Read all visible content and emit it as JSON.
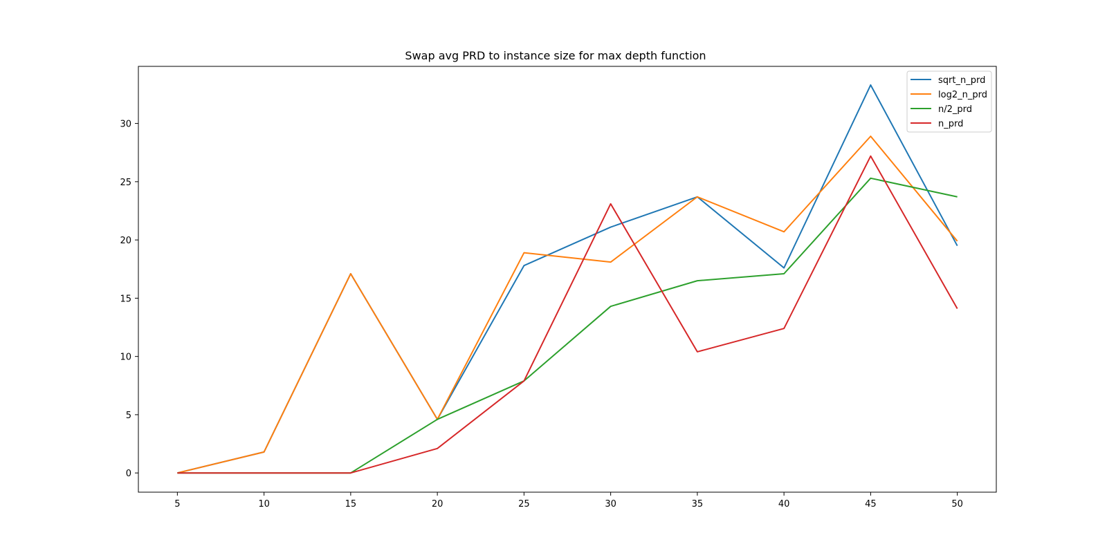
{
  "chart_data": {
    "type": "line",
    "title": "Swap avg PRD to instance size for max depth function",
    "xlabel": "",
    "ylabel": "",
    "x": [
      5,
      10,
      15,
      20,
      25,
      30,
      35,
      40,
      45,
      50
    ],
    "xlim": [
      2.75,
      52.25
    ],
    "ylim": [
      -1.65,
      34.9
    ],
    "xticks": [
      5,
      10,
      15,
      20,
      25,
      30,
      35,
      40,
      45,
      50
    ],
    "yticks": [
      0,
      5,
      10,
      15,
      20,
      25,
      30
    ],
    "grid": false,
    "legend_position": "top-right",
    "series": [
      {
        "name": "sqrt_n_prd",
        "color": "#1f77b4",
        "values": [
          0,
          1.8,
          17.1,
          4.6,
          17.8,
          21.1,
          23.7,
          17.6,
          33.3,
          19.5
        ]
      },
      {
        "name": "log2_n_prd",
        "color": "#ff7f0e",
        "values": [
          0,
          1.8,
          17.1,
          4.6,
          18.9,
          18.1,
          23.7,
          20.7,
          28.9,
          19.9
        ]
      },
      {
        "name": "n/2_prd",
        "color": "#2ca02c",
        "values": [
          0,
          0,
          0,
          4.6,
          7.9,
          14.3,
          16.5,
          17.1,
          25.3,
          23.7
        ]
      },
      {
        "name": "n_prd",
        "color": "#d62728",
        "values": [
          0,
          0,
          0,
          2.1,
          7.9,
          23.1,
          10.4,
          12.4,
          27.2,
          14.1
        ]
      }
    ]
  }
}
